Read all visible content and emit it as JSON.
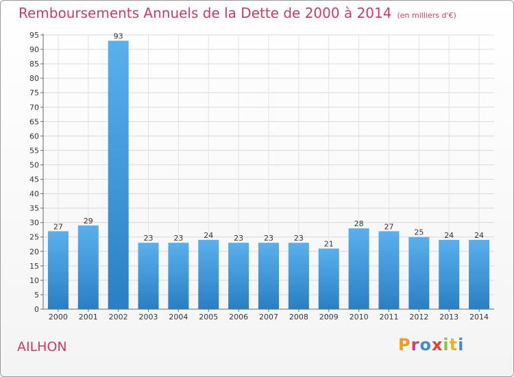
{
  "header": {
    "title": "Remboursements Annuels de la Dette de 2000 à 2014",
    "unit": "(en milliers d'€)"
  },
  "footer": {
    "commune": "AILHON",
    "brand": [
      "P",
      "r",
      "o",
      "x",
      "i",
      "t",
      "i"
    ],
    "brand_colors": [
      "#f29a1f",
      "#d83a7a",
      "#3a8fd8",
      "#e63d2e",
      "#8bc43f",
      "#f2b21f",
      "#3a8fd8"
    ]
  },
  "chart_data": {
    "type": "bar",
    "title": "Remboursements Annuels de la Dette de 2000 à 2014",
    "xlabel": "",
    "ylabel": "",
    "categories": [
      "2000",
      "2001",
      "2002",
      "2003",
      "2004",
      "2005",
      "2006",
      "2007",
      "2008",
      "2009",
      "2010",
      "2011",
      "2012",
      "2013",
      "2014"
    ],
    "values": [
      27,
      29,
      93,
      23,
      23,
      24,
      23,
      23,
      23,
      21,
      28,
      27,
      25,
      24,
      24
    ],
    "ylim": [
      0,
      95
    ],
    "yticks": [
      0,
      5,
      10,
      15,
      20,
      25,
      30,
      35,
      40,
      45,
      50,
      55,
      60,
      65,
      70,
      75,
      80,
      85,
      90,
      95
    ],
    "grid": true,
    "bar_color": "#3f9ee0"
  }
}
